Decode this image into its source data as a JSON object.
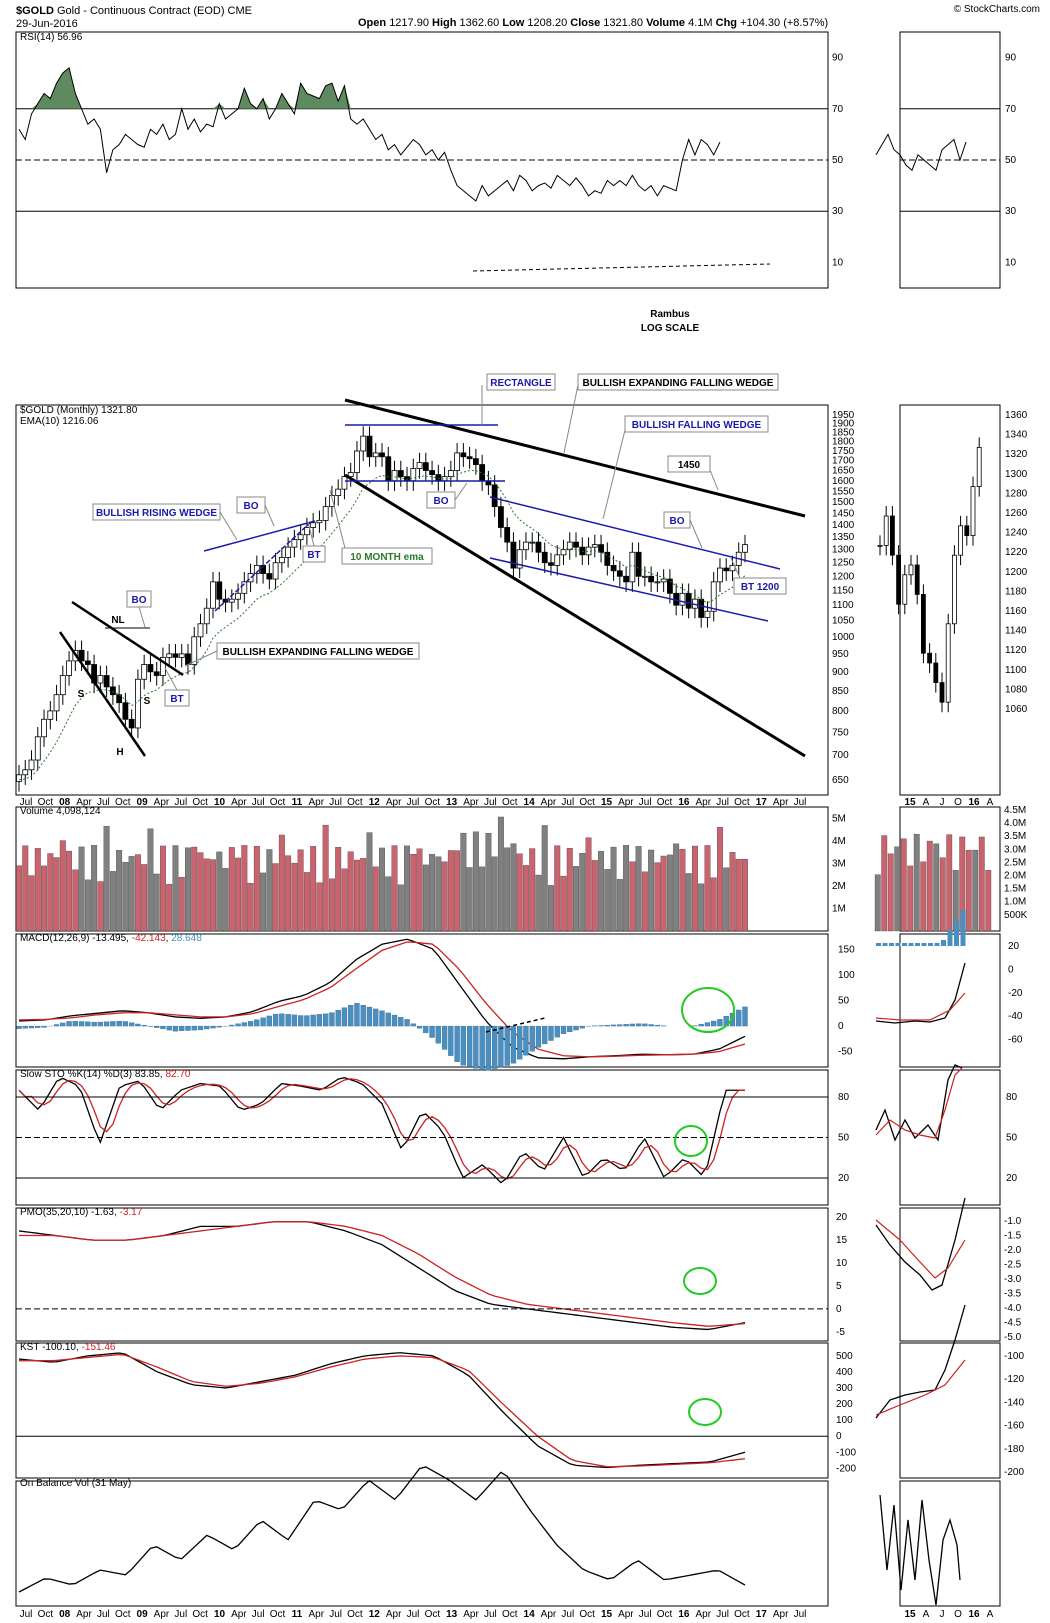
{
  "header": {
    "symbol": "$GOLD",
    "name": "Gold - Continuous Contract (EOD)",
    "exchange": "CME",
    "date": "29-Jun-2016",
    "open_label": "Open",
    "open": "1217.90",
    "high_label": "High",
    "high": "1362.60",
    "low_label": "Low",
    "low": "1208.20",
    "close_label": "Close",
    "close": "1321.80",
    "volume_label": "Volume",
    "volume": "4.1M",
    "chg_label": "Chg",
    "chg": "+104.30 (+8.57%)",
    "watermark": "© StockCharts.com"
  },
  "colors": {
    "up": "#ffffff",
    "down": "#000000",
    "vol_up": "#c9636e",
    "vol_down": "#808080",
    "macd_hist": "#4a8fc0",
    "rsi_fill": "#5f8a5f",
    "signal": "#cc2222",
    "trend": "#1a1aa8",
    "circle": "#22cc22"
  },
  "chart_data": {
    "type": "candlestick",
    "scale": "log",
    "period": "monthly",
    "x_months": [
      "Jul",
      "Oct",
      "08",
      "Apr",
      "Jul",
      "Oct",
      "09",
      "Apr",
      "Jul",
      "Oct",
      "10",
      "Apr",
      "Jul",
      "Oct",
      "11",
      "Apr",
      "Jul",
      "Oct",
      "12",
      "Apr",
      "Jul",
      "Oct",
      "13",
      "Apr",
      "Jul",
      "Oct",
      "14",
      "Apr",
      "Jul",
      "Oct",
      "15",
      "Apr",
      "Jul",
      "Oct",
      "16",
      "Apr",
      "Jul",
      "Oct",
      "17",
      "Apr",
      "Jul"
    ],
    "x_right": [
      "15",
      "A",
      "J",
      "O",
      "16",
      "A"
    ],
    "price": {
      "title": "$GOLD (Monthly) 1321.80",
      "ema_label": "EMA(10) 1216.06",
      "ticks": [
        "1950",
        "1900",
        "1850",
        "1800",
        "1750",
        "1700",
        "1650",
        "1600",
        "1550",
        "1500",
        "1450",
        "1400",
        "1350",
        "1300",
        "1250",
        "1200",
        "1150",
        "1100",
        "1050",
        "1000",
        "950",
        "900",
        "850",
        "800",
        "750",
        "700",
        "650"
      ],
      "ticks_right": [
        "1360",
        "1340",
        "1320",
        "1300",
        "1280",
        "1260",
        "1240",
        "1220",
        "1200",
        "1180",
        "1160",
        "1140",
        "1120",
        "1100",
        "1080",
        "1060"
      ],
      "close_series": [
        660,
        670,
        690,
        740,
        780,
        800,
        840,
        890,
        930,
        960,
        930,
        920,
        870,
        890,
        860,
        840,
        820,
        780,
        760,
        880,
        920,
        900,
        890,
        940,
        950,
        940,
        950,
        920,
        1000,
        1040,
        1090,
        1180,
        1120,
        1110,
        1120,
        1140,
        1180,
        1210,
        1240,
        1210,
        1190,
        1250,
        1270,
        1310,
        1340,
        1360,
        1390,
        1410,
        1420,
        1480,
        1530,
        1560,
        1620,
        1640,
        1750,
        1830,
        1720,
        1740,
        1720,
        1600,
        1650,
        1620,
        1600,
        1660,
        1690,
        1650,
        1630,
        1600,
        1620,
        1650,
        1740,
        1720,
        1710,
        1680,
        1600,
        1580,
        1480,
        1390,
        1330,
        1230,
        1300,
        1330,
        1330,
        1290,
        1250,
        1240,
        1280,
        1300,
        1330,
        1310,
        1280,
        1310,
        1320,
        1290,
        1240,
        1220,
        1200,
        1180,
        1290,
        1200,
        1200,
        1180,
        1180,
        1190,
        1140,
        1100,
        1140,
        1090,
        1120,
        1060,
        1080,
        1180,
        1230,
        1220,
        1240,
        1290,
        1320
      ],
      "annotations": [
        "RECTANGLE",
        "BULLISH EXPANDING FALLING WEDGE",
        "BULLISH FALLING WEDGE",
        "1450",
        "BULLISH RISING WEDGE",
        "BO",
        "BO",
        "BO",
        "BO",
        "BT",
        "BT",
        "BT 1200",
        "10 MONTH ema",
        "BULLISH EXPANDING FALLING WEDGE",
        "NL",
        "S",
        "S",
        "H",
        "Rambus",
        "LOG SCALE"
      ]
    },
    "rsi": {
      "title": "RSI(14) 56.96",
      "ticks": [
        "90",
        "70",
        "50",
        "30",
        "10"
      ],
      "levels": [
        70,
        50,
        30
      ],
      "ylim": [
        0,
        100
      ],
      "values": [
        62,
        58,
        68,
        72,
        76,
        74,
        80,
        84,
        86,
        76,
        70,
        64,
        66,
        62,
        45,
        54,
        56,
        60,
        58,
        56,
        55,
        62,
        60,
        64,
        58,
        60,
        70,
        62,
        66,
        61,
        64,
        63,
        72,
        66,
        68,
        70,
        78,
        72,
        70,
        74,
        66,
        70,
        76,
        72,
        68,
        80,
        76,
        75,
        74,
        79,
        80,
        73,
        79,
        66,
        64,
        66,
        62,
        58,
        60,
        54,
        56,
        52,
        55,
        58,
        56,
        52,
        54,
        50,
        53,
        46,
        40,
        38,
        36,
        34,
        40,
        36,
        38,
        40,
        42,
        38,
        44,
        42,
        38,
        40,
        41,
        39,
        44,
        42,
        40,
        43,
        40,
        36,
        38,
        37,
        42,
        40,
        42,
        40,
        44,
        40,
        38,
        40,
        36,
        40,
        39,
        38,
        50,
        58,
        52,
        58,
        56,
        52,
        57
      ]
    },
    "volume": {
      "title": "Volume 4,098,124",
      "ticks": [
        "5M",
        "4M",
        "3M",
        "2M",
        "1M"
      ],
      "ticks_right": [
        "4.5M",
        "4.0M",
        "3.5M",
        "3.0M",
        "2.5M",
        "2.0M",
        "1.5M",
        "1.0M",
        "500K"
      ],
      "ylim": [
        0,
        5.5
      ]
    },
    "macd": {
      "title_prefix": "MACD(12,26,9)",
      "v1": "-13.495",
      "v2": "-42.143",
      "v3": "28.648",
      "ticks": [
        "150",
        "100",
        "50",
        "0",
        "-50"
      ],
      "ticks_right": [
        "20",
        "0",
        "-20",
        "-40",
        "-60"
      ],
      "ylim": [
        -80,
        180
      ]
    },
    "sto": {
      "title_prefix": "Slow STO %K(14) %D(3)",
      "k": "83.85",
      "d": "82.70",
      "ticks": [
        "80",
        "50",
        "20"
      ],
      "ylim": [
        0,
        100
      ]
    },
    "pmo": {
      "title_prefix": "PMO(35,20,10)",
      "v1": "-1.63",
      "v2": "-3.17",
      "ticks": [
        "20",
        "15",
        "10",
        "5",
        "0",
        "-5"
      ],
      "ticks_right": [
        "-1.0",
        "-1.5",
        "-2.0",
        "-2.5",
        "-3.0",
        "-3.5",
        "-4.0",
        "-4.5",
        "-5.0"
      ],
      "ylim": [
        -7,
        22
      ]
    },
    "kst": {
      "title_prefix": "KST",
      "v1": "-100.10",
      "v2": "-151.46",
      "ticks": [
        "500",
        "400",
        "300",
        "200",
        "100",
        "0",
        "-100",
        "-200"
      ],
      "ticks_right": [
        "-100",
        "-120",
        "-140",
        "-160",
        "-180",
        "-200"
      ],
      "ylim": [
        -260,
        580
      ]
    },
    "obv": {
      "title": "On Balance Vol (31 May)"
    }
  }
}
